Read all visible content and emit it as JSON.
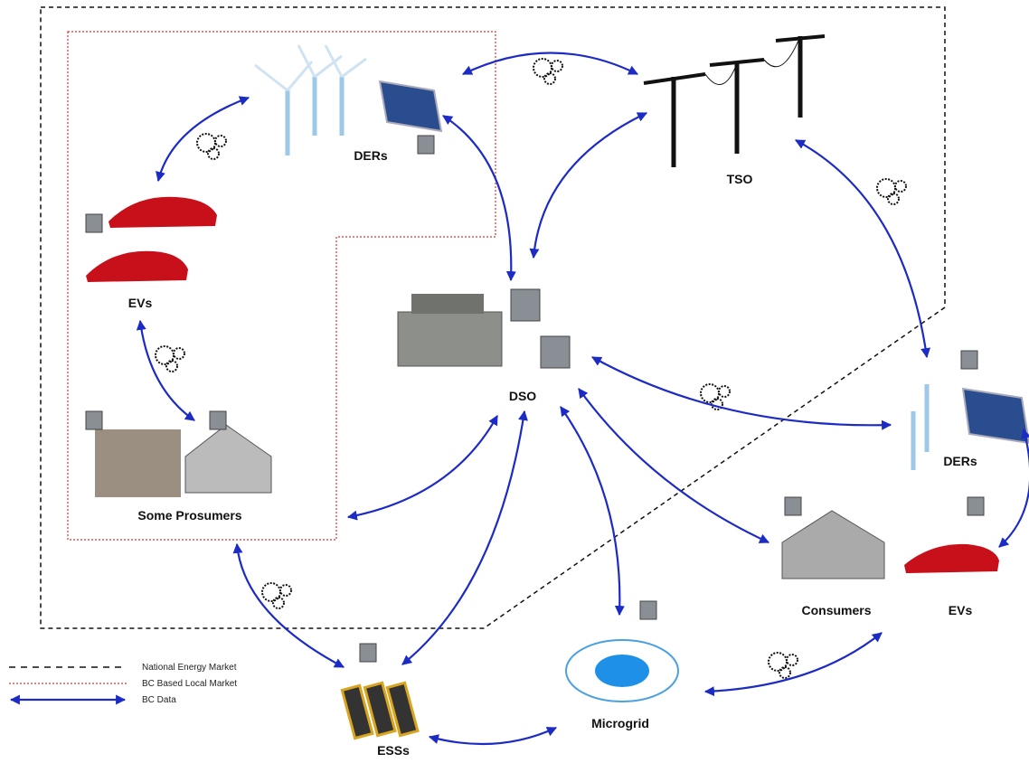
{
  "nodes": [
    {
      "label": "DERs"
    },
    {
      "label": "TSO"
    },
    {
      "label": "EVs"
    },
    {
      "label": "DSO"
    },
    {
      "label": "Some Prosumers"
    },
    {
      "label": "ESSs"
    },
    {
      "label": "Microgrid"
    },
    {
      "label": "Consumers"
    },
    {
      "label": "EVs"
    },
    {
      "label": "DERs"
    }
  ],
  "legend": [
    {
      "label": "National Energy Market"
    },
    {
      "label": "BC Based Local Market"
    },
    {
      "label": "BC Data"
    }
  ]
}
